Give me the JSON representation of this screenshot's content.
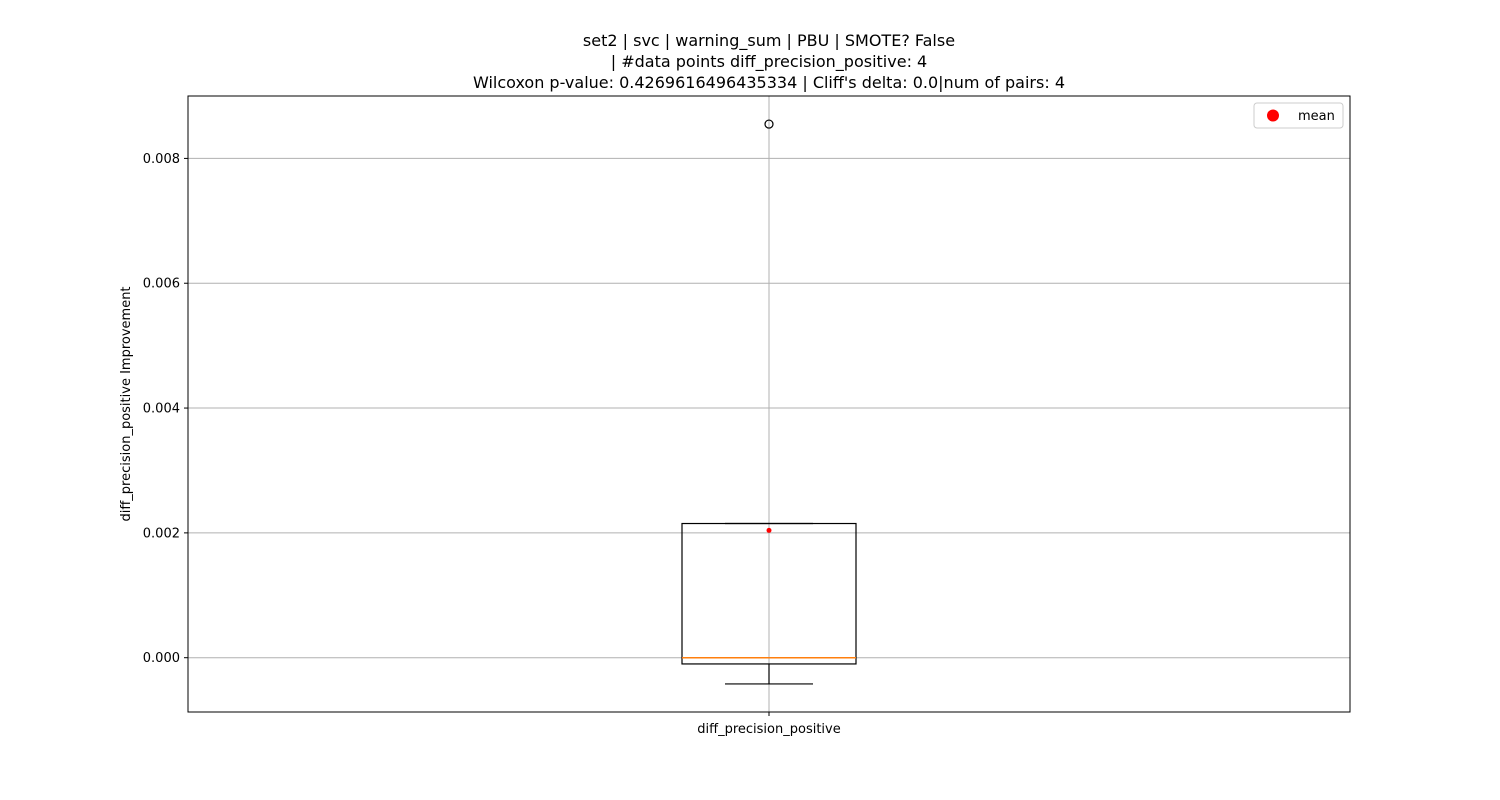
{
  "chart_data": {
    "type": "box",
    "title_lines": [
      "set2 | svc | warning_sum | PBU | SMOTE? False",
      "| #data points diff_precision_positive: 4",
      "Wilcoxon p-value: 0.4269616496435334 | Cliff's delta: 0.0|num of pairs: 4"
    ],
    "xlabel": "",
    "ylabel": "diff_precision_positive Improvement",
    "categories": [
      "diff_precision_positive"
    ],
    "ylim": [
      -0.00087,
      0.009
    ],
    "yticks": [
      0.0,
      0.002,
      0.004,
      0.006,
      0.008
    ],
    "ytick_labels": [
      "0.000",
      "0.002",
      "0.004",
      "0.006",
      "0.008"
    ],
    "grid": true,
    "boxes": [
      {
        "category": "diff_precision_positive",
        "whisker_low": -0.00042,
        "q1": -0.0001,
        "median": 0.0,
        "q3": 0.00215,
        "whisker_high": 0.00215,
        "mean": 0.00204,
        "outliers": [
          0.00855
        ]
      }
    ],
    "legend": {
      "position": "top-right",
      "entries": [
        {
          "label": "mean",
          "color": "#ff0000",
          "marker": "circle"
        }
      ]
    },
    "colors": {
      "median": "#ff7f0e",
      "mean": "#ff0000",
      "box": "#000000",
      "grid": "#b0b0b0"
    }
  }
}
